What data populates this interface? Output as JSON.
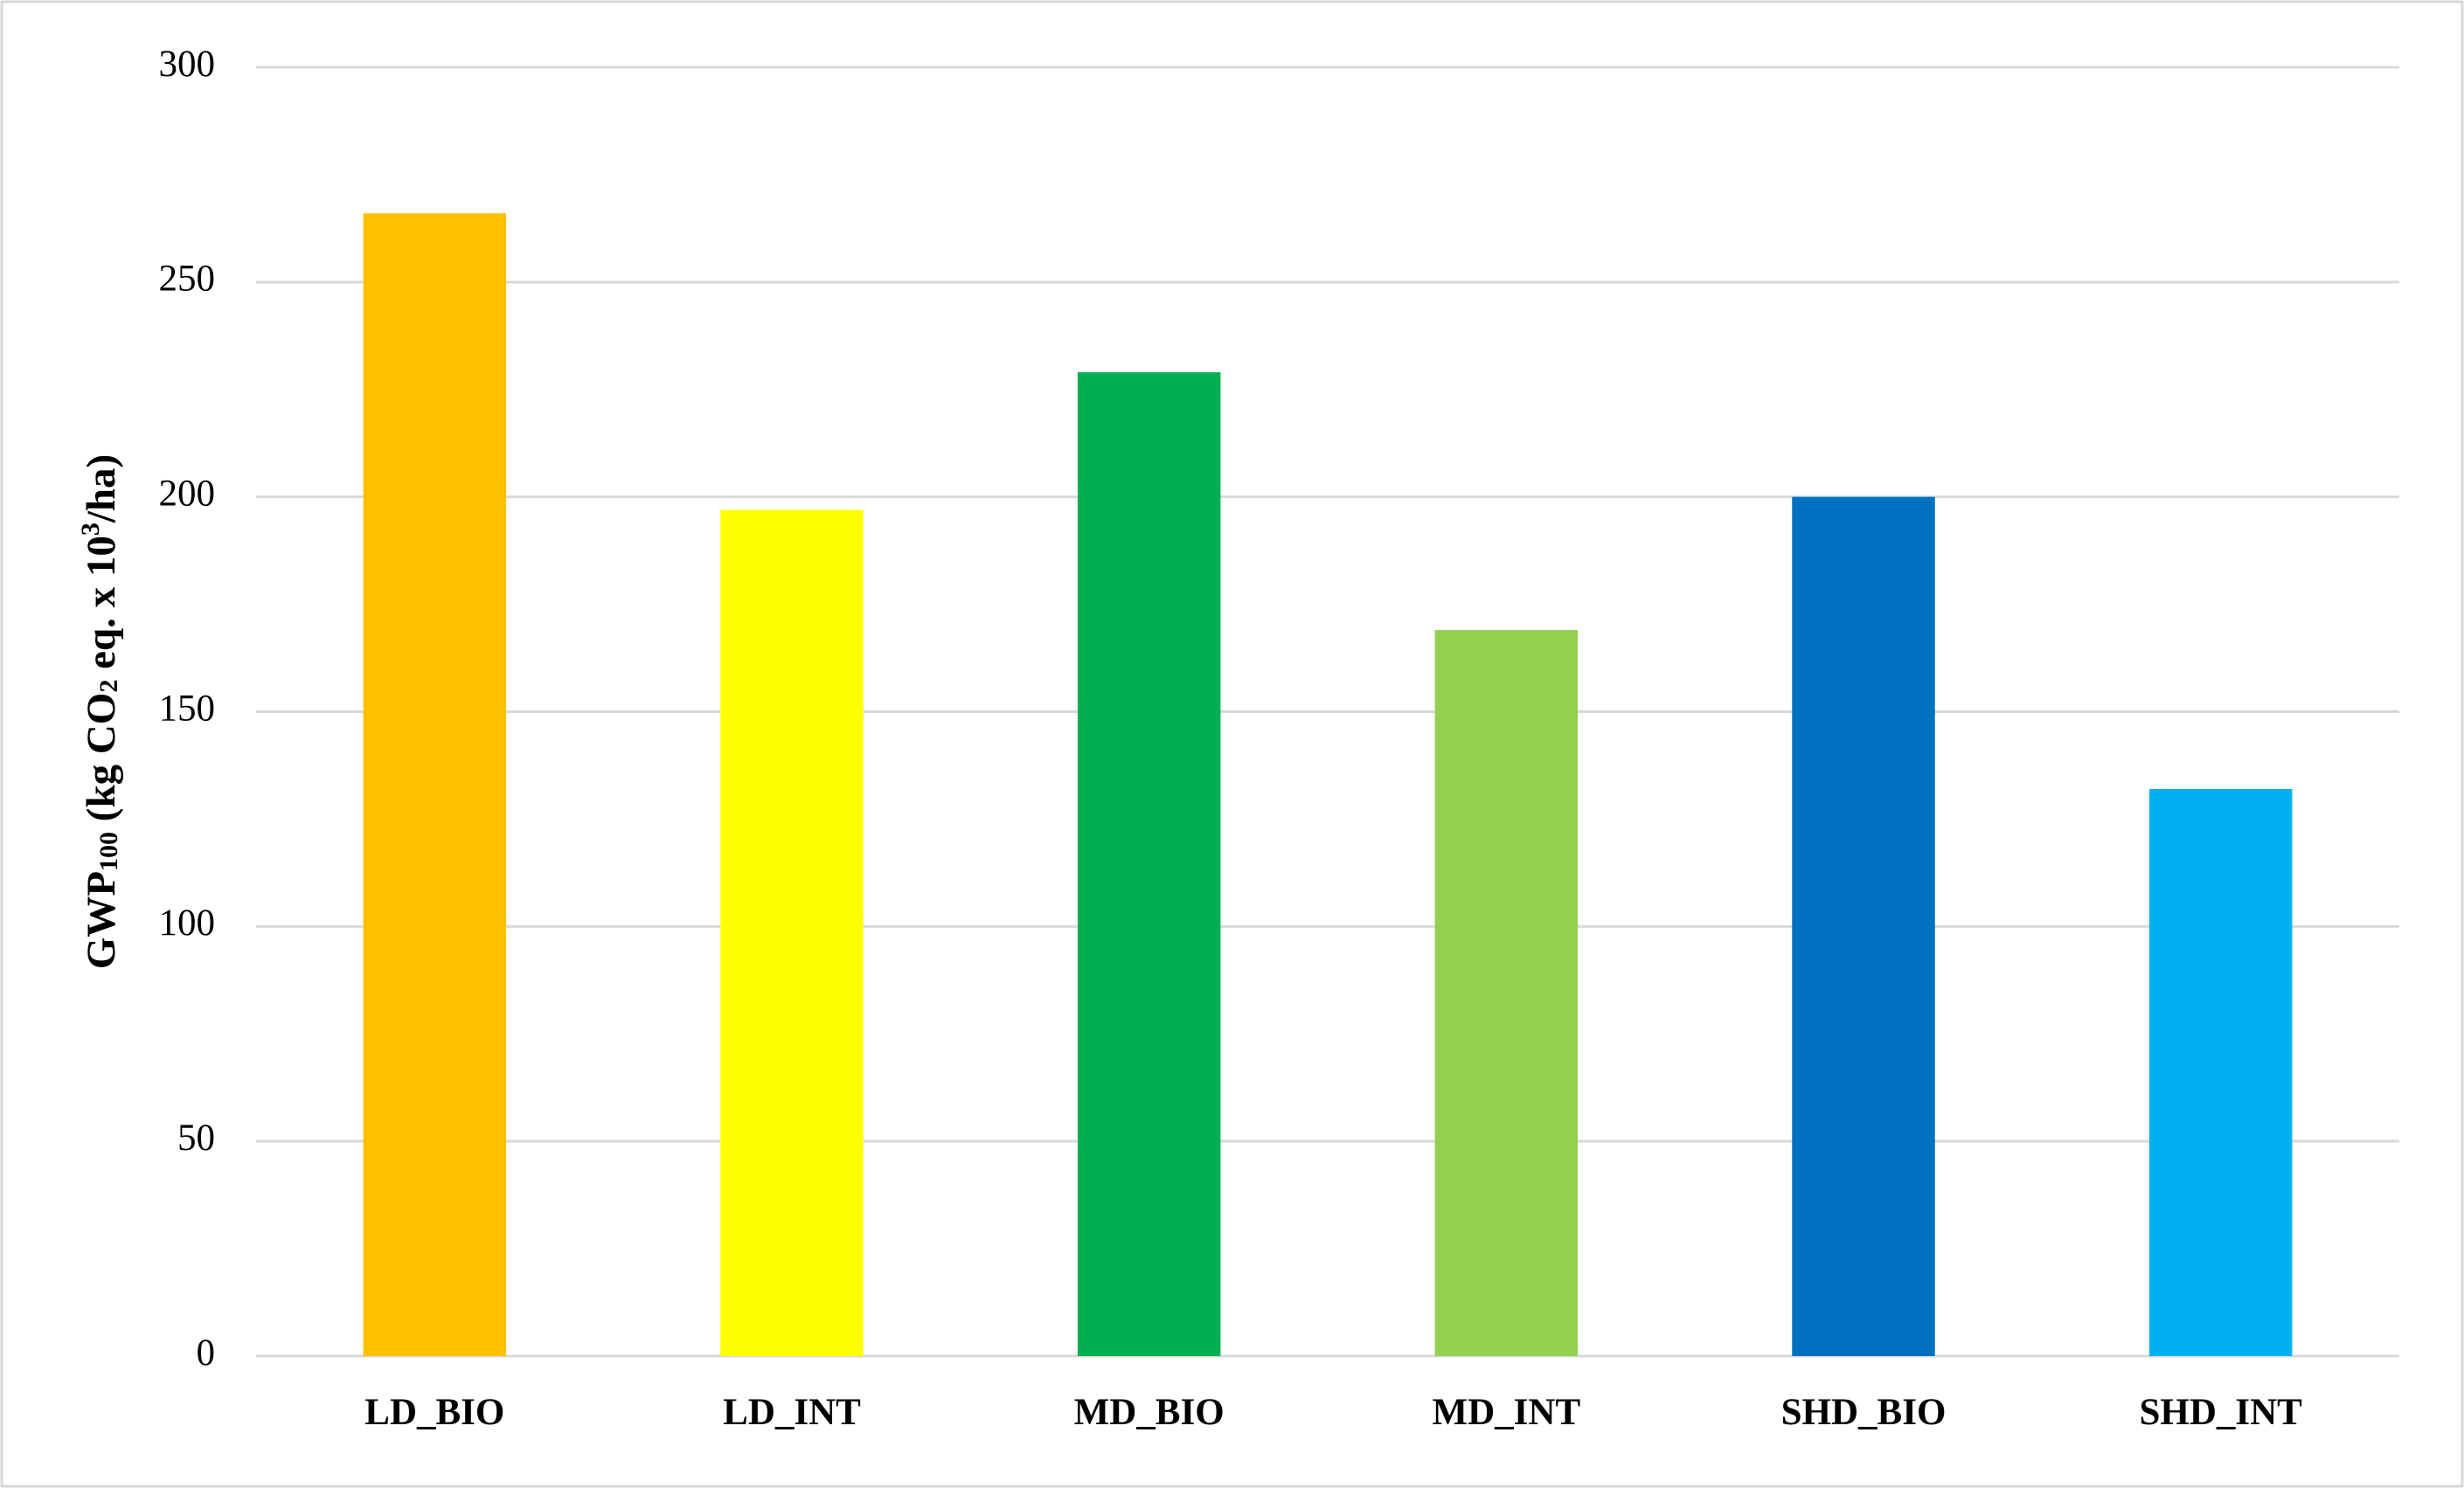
{
  "chart_data": {
    "type": "bar",
    "y_label": [
      "GWP",
      "100",
      " (kg CO",
      "2",
      " eq. x 10",
      "3",
      "/ha)"
    ],
    "categories": [
      "LD_BIO",
      "LD_INT",
      "MD_BIO",
      "MD_INT",
      "SHD_BIO",
      "SHD_INT"
    ],
    "values": [
      266,
      197,
      229,
      169,
      200,
      132
    ],
    "colors": [
      "#ffc000",
      "#ffff00",
      "#00b050",
      "#92d050",
      "#0070c0",
      "#00b0f0"
    ],
    "ylim": [
      0,
      300
    ],
    "yticks": [
      0,
      50,
      100,
      150,
      200,
      250,
      300
    ],
    "grid": true
  }
}
